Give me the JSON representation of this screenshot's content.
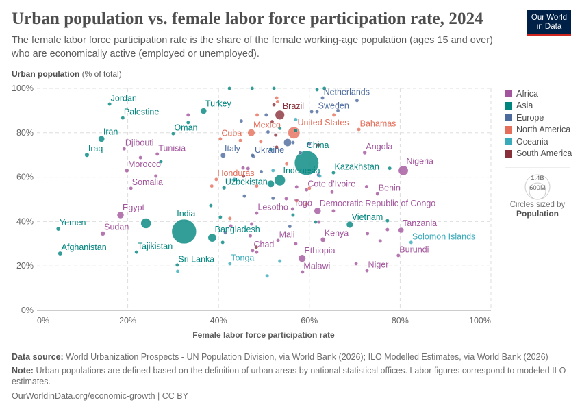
{
  "header": {
    "title": "Urban population vs. female labor force participation rate, 2024",
    "subtitle": "The female labor force participation rate is the share of the female working-age population (ages 15 and over) who are economically active (employed or unemployed).",
    "logo": "Our World in Data"
  },
  "legend": {
    "items": [
      {
        "label": "Africa",
        "color": "#a2559c"
      },
      {
        "label": "Asia",
        "color": "#00847e"
      },
      {
        "label": "Europe",
        "color": "#4c6a9c"
      },
      {
        "label": "North America",
        "color": "#e56e5a"
      },
      {
        "label": "Oceania",
        "color": "#38aaba"
      },
      {
        "label": "South America",
        "color": "#883039"
      }
    ],
    "size_key": {
      "large": "1.4B",
      "small": "600M",
      "caption": "Circles sized by",
      "measure": "Population"
    }
  },
  "footer": {
    "source_label": "Data source:",
    "source": "World Urbanization Prospects - UN Population Division, via World Bank (2026); ILO Modelled Estimates, via World Bank (2026)",
    "note_label": "Note:",
    "note": "Urban populations are defined based on the definition of urban areas by national statistical offices. Labor figures correspond to modeled ILO estimates.",
    "credit": "OurWorldinData.org/economic-growth | CC BY"
  },
  "chart_data": {
    "type": "scatter",
    "title": "Urban population vs. female labor force participation rate, 2024",
    "xlabel": "Female labor force participation rate",
    "ylabel": "Urban population",
    "ylabel_unit": "(% of total)",
    "xlim": [
      0,
      100
    ],
    "ylim": [
      0,
      100
    ],
    "xticks": [
      "0%",
      "20%",
      "40%",
      "60%",
      "80%",
      "100%"
    ],
    "yticks": [
      "0%",
      "20%",
      "40%",
      "60%",
      "80%",
      "100%"
    ],
    "grid": true,
    "legend": "right",
    "size_by": "Population (millions)",
    "points": [
      {
        "label": "Jordan",
        "x": 16,
        "y": 92.9,
        "region": "Asia",
        "pop": 11
      },
      {
        "label": "Palestine",
        "x": 18.9,
        "y": 86.7,
        "region": "Asia",
        "pop": 5
      },
      {
        "label": "Iran",
        "x": 14.2,
        "y": 77.2,
        "region": "Asia",
        "pop": 91
      },
      {
        "label": "Iraq",
        "x": 11,
        "y": 70,
        "region": "Asia",
        "pop": 46
      },
      {
        "label": "Djibouti",
        "x": 19.2,
        "y": 72.8,
        "region": "Africa",
        "pop": 1
      },
      {
        "label": "Tunisia",
        "x": 26.5,
        "y": 70.4,
        "region": "Africa",
        "pop": 12
      },
      {
        "label": "Morocco",
        "x": 19.8,
        "y": 63,
        "region": "Africa",
        "pop": 38
      },
      {
        "label": "Somalia",
        "x": 20.7,
        "y": 55,
        "region": "Africa",
        "pop": 19
      },
      {
        "label": "Oman",
        "x": 30,
        "y": 79.6,
        "region": "Asia",
        "pop": 5
      },
      {
        "label": "Turkey",
        "x": 36.7,
        "y": 89.8,
        "region": "Asia",
        "pop": 87
      },
      {
        "label": "Cuba",
        "x": 40.4,
        "y": 77.2,
        "region": "North America",
        "pop": 11
      },
      {
        "label": "Mexico",
        "x": 47.2,
        "y": 80,
        "region": "North America",
        "pop": 131
      },
      {
        "label": "Italy",
        "x": 41,
        "y": 69.8,
        "region": "Europe",
        "pop": 59
      },
      {
        "label": "Ukraine",
        "x": 47.7,
        "y": 69.4,
        "region": "Europe",
        "pop": 38
      },
      {
        "label": "Honduras",
        "x": 39.5,
        "y": 59,
        "region": "North America",
        "pop": 11
      },
      {
        "label": "Uzbekistan",
        "x": 41.2,
        "y": 55.2,
        "region": "Asia",
        "pop": 36
      },
      {
        "label": "Egypt",
        "x": 18.4,
        "y": 42.9,
        "region": "Africa",
        "pop": 116
      },
      {
        "label": "Yemen",
        "x": 4.7,
        "y": 36.7,
        "region": "Asia",
        "pop": 40
      },
      {
        "label": "Sudan",
        "x": 14.5,
        "y": 34.6,
        "region": "Africa",
        "pop": 50
      },
      {
        "label": "Afghanistan",
        "x": 5.1,
        "y": 25.6,
        "region": "Asia",
        "pop": 42
      },
      {
        "label": "Tajikistan",
        "x": 21.9,
        "y": 26.2,
        "region": "Asia",
        "pop": 10
      },
      {
        "label": "India",
        "x": 32.4,
        "y": 35.5,
        "region": "Asia",
        "pop": 1450
      },
      {
        "label": "Bangladesh",
        "x": 38.6,
        "y": 32.7,
        "region": "Asia",
        "pop": 173
      },
      {
        "label": "Sri Lanka",
        "x": 30.9,
        "y": 20.4,
        "region": "Asia",
        "pop": 23
      },
      {
        "label": "Tonga",
        "x": 42.5,
        "y": 21,
        "region": "Oceania",
        "pop": 1
      },
      {
        "label": "Chad",
        "x": 47.5,
        "y": 26.9,
        "region": "Africa",
        "pop": 20
      },
      {
        "label": "Lesotho",
        "x": 48.4,
        "y": 43.8,
        "region": "Africa",
        "pop": 2
      },
      {
        "label": "Togo",
        "x": 56.3,
        "y": 45.7,
        "region": "Africa",
        "pop": 9
      },
      {
        "label": "Democratic Republic of Congo",
        "x": 61.8,
        "y": 44.8,
        "region": "Africa",
        "pop": 110
      },
      {
        "label": "Mali",
        "x": 53.1,
        "y": 31.5,
        "region": "Africa",
        "pop": 24
      },
      {
        "label": "Kenya",
        "x": 63,
        "y": 31.8,
        "region": "Africa",
        "pop": 56
      },
      {
        "label": "Ethiopia",
        "x": 58.4,
        "y": 23.4,
        "region": "Africa",
        "pop": 132
      },
      {
        "label": "Malawi",
        "x": 58.5,
        "y": 17.3,
        "region": "Africa",
        "pop": 21
      },
      {
        "label": "Vietnam",
        "x": 68.9,
        "y": 38.6,
        "region": "Asia",
        "pop": 101
      },
      {
        "label": "Tanzania",
        "x": 80.2,
        "y": 36.1,
        "region": "Africa",
        "pop": 69
      },
      {
        "label": "Solomon Islands",
        "x": 82.4,
        "y": 30.6,
        "region": "Oceania",
        "pop": 1
      },
      {
        "label": "Burundi",
        "x": 79.6,
        "y": 24.7,
        "region": "Africa",
        "pop": 14
      },
      {
        "label": "Niger",
        "x": 72.7,
        "y": 17.9,
        "region": "Africa",
        "pop": 27
      },
      {
        "label": "Netherlands",
        "x": 62.9,
        "y": 95.7,
        "region": "Europe",
        "pop": 18
      },
      {
        "label": "Sweden",
        "x": 61.7,
        "y": 89.5,
        "region": "Europe",
        "pop": 11
      },
      {
        "label": "Brazil",
        "x": 53.5,
        "y": 88,
        "region": "South America",
        "pop": 212
      },
      {
        "label": "United States",
        "x": 56.6,
        "y": 80,
        "region": "North America",
        "pop": 345
      },
      {
        "label": "Bahamas",
        "x": 70.9,
        "y": 81.5,
        "region": "North America",
        "pop": 1
      },
      {
        "label": "China",
        "x": 59.4,
        "y": 66.4,
        "region": "Asia",
        "pop": 1410
      },
      {
        "label": "Angola",
        "x": 72.2,
        "y": 71,
        "region": "Africa",
        "pop": 37
      },
      {
        "label": "Nigeria",
        "x": 80.7,
        "y": 63,
        "region": "Africa",
        "pop": 233
      },
      {
        "label": "Kazakhstan",
        "x": 65.3,
        "y": 62,
        "region": "Asia",
        "pop": 20
      },
      {
        "label": "Indonesia",
        "x": 53.5,
        "y": 58.6,
        "region": "Asia",
        "pop": 283
      },
      {
        "label": "Cote d'Ivoire",
        "x": 59.4,
        "y": 54.3,
        "region": "Africa",
        "pop": 31
      },
      {
        "label": "Benin",
        "x": 75,
        "y": 52.5,
        "region": "Africa",
        "pop": 14
      },
      {
        "x": 24,
        "y": 39.2,
        "region": "Asia",
        "pop": 251
      },
      {
        "x": 40.9,
        "y": 30.6,
        "region": "Asia",
        "pop": 30
      },
      {
        "x": 31,
        "y": 17.6,
        "region": "Oceania",
        "pop": 10
      },
      {
        "x": 55.2,
        "y": 75.6,
        "region": "Europe",
        "pop": 145
      },
      {
        "x": 50.9,
        "y": 80.4,
        "region": "Europe",
        "pop": 30
      },
      {
        "x": 52.6,
        "y": 79,
        "region": "South America",
        "pop": 30
      },
      {
        "x": 57,
        "y": 81,
        "region": "Asia",
        "pop": 30
      },
      {
        "x": 46.5,
        "y": 63.9,
        "region": "Africa",
        "pop": 30
      },
      {
        "x": 51.5,
        "y": 57,
        "region": "Asia",
        "pop": 124
      },
      {
        "x": 42.4,
        "y": 100,
        "region": "Asia",
        "pop": 4
      },
      {
        "x": 47.4,
        "y": 100,
        "region": "Asia",
        "pop": 4
      },
      {
        "x": 52.2,
        "y": 100,
        "region": "Asia",
        "pop": 4
      },
      {
        "x": 61.7,
        "y": 99.4,
        "region": "Asia",
        "pop": 4
      },
      {
        "x": 63.3,
        "y": 100,
        "region": "Asia",
        "pop": 4
      },
      {
        "x": 52.2,
        "y": 92.6,
        "region": "South America",
        "pop": 10
      },
      {
        "x": 52.8,
        "y": 95.7,
        "region": "North America",
        "pop": 2
      },
      {
        "x": 51.8,
        "y": 85,
        "region": "South America",
        "pop": 5
      },
      {
        "x": 50.5,
        "y": 88,
        "region": "Europe",
        "pop": 5
      },
      {
        "x": 45,
        "y": 85.3,
        "region": "Europe",
        "pop": 5
      },
      {
        "x": 56.4,
        "y": 75.6,
        "region": "Europe",
        "pop": 5
      },
      {
        "x": 47.5,
        "y": 69.8,
        "region": "Europe",
        "pop": 5
      },
      {
        "x": 45.7,
        "y": 51.5,
        "region": "Europe",
        "pop": 3
      },
      {
        "x": 52,
        "y": 50.5,
        "region": "Europe",
        "pop": 3
      },
      {
        "x": 55.7,
        "y": 37.8,
        "region": "Europe",
        "pop": 3
      },
      {
        "x": 60,
        "y": 75,
        "region": "Europe",
        "pop": 5
      },
      {
        "x": 66.3,
        "y": 90,
        "region": "Europe",
        "pop": 5
      },
      {
        "x": 70.5,
        "y": 94.5,
        "region": "Europe",
        "pop": 5
      },
      {
        "x": 58,
        "y": 71,
        "region": "Europe",
        "pop": 3
      },
      {
        "x": 62,
        "y": 61,
        "region": "Europe",
        "pop": 3
      },
      {
        "x": 60.5,
        "y": 89.5,
        "region": "Europe",
        "pop": 5
      },
      {
        "x": 49.4,
        "y": 62.5,
        "region": "Europe",
        "pop": 3
      },
      {
        "x": 41.5,
        "y": 35,
        "region": "Europe",
        "pop": 3
      },
      {
        "x": 53,
        "y": 94,
        "region": "North America",
        "pop": 3
      },
      {
        "x": 49.3,
        "y": 76,
        "region": "North America",
        "pop": 3
      },
      {
        "x": 48.4,
        "y": 56,
        "region": "North America",
        "pop": 3
      },
      {
        "x": 57.2,
        "y": 49.4,
        "region": "North America",
        "pop": 3
      },
      {
        "x": 42.5,
        "y": 41.4,
        "region": "North America",
        "pop": 3
      },
      {
        "x": 60,
        "y": 55,
        "region": "North America",
        "pop": 3
      },
      {
        "x": 59.3,
        "y": 47.8,
        "region": "North America",
        "pop": 3
      },
      {
        "x": 65.4,
        "y": 88,
        "region": "North America",
        "pop": 3
      },
      {
        "x": 48.5,
        "y": 88,
        "region": "North America",
        "pop": 3
      },
      {
        "x": 44.8,
        "y": 76.5,
        "region": "North America",
        "pop": 3
      },
      {
        "x": 38.5,
        "y": 56,
        "region": "North America",
        "pop": 3
      },
      {
        "x": 55,
        "y": 66,
        "region": "North America",
        "pop": 3
      },
      {
        "x": 48.3,
        "y": 28.5,
        "region": "South America",
        "pop": 5
      },
      {
        "x": 62,
        "y": 74.5,
        "region": "South America",
        "pop": 5
      },
      {
        "x": 45.5,
        "y": 60.5,
        "region": "South America",
        "pop": 5
      },
      {
        "x": 52.8,
        "y": 73.5,
        "region": "South America",
        "pop": 30
      },
      {
        "x": 43.5,
        "y": 59,
        "region": "Oceania",
        "pop": 3
      },
      {
        "x": 52,
        "y": 63,
        "region": "Oceania",
        "pop": 3
      },
      {
        "x": 57,
        "y": 86,
        "region": "Oceania",
        "pop": 3
      },
      {
        "x": 62.3,
        "y": 60.5,
        "region": "Oceania",
        "pop": 3
      },
      {
        "x": 53.5,
        "y": 22.2,
        "region": "Oceania",
        "pop": 3
      },
      {
        "x": 50.7,
        "y": 15.5,
        "region": "Oceania",
        "pop": 3
      },
      {
        "x": 27.3,
        "y": 67,
        "region": "Asia",
        "pop": 4
      },
      {
        "x": 33.3,
        "y": 84.6,
        "region": "Asia",
        "pop": 10
      },
      {
        "x": 61.4,
        "y": 39.8,
        "region": "Asia",
        "pop": 4
      },
      {
        "x": 56.4,
        "y": 42.9,
        "region": "Asia",
        "pop": 4
      },
      {
        "x": 38.3,
        "y": 47.2,
        "region": "Asia",
        "pop": 4
      },
      {
        "x": 40.4,
        "y": 42,
        "region": "Asia",
        "pop": 4
      },
      {
        "x": 77.2,
        "y": 40.4,
        "region": "Asia",
        "pop": 4
      },
      {
        "x": 77.7,
        "y": 64,
        "region": "Asia",
        "pop": 4
      },
      {
        "x": 53.5,
        "y": 82,
        "region": "Asia",
        "pop": 4
      },
      {
        "x": 51.5,
        "y": 72.5,
        "region": "Asia",
        "pop": 4
      },
      {
        "x": 33.3,
        "y": 88,
        "region": "Africa",
        "pop": 4
      },
      {
        "x": 22.8,
        "y": 68.8,
        "region": "Africa",
        "pop": 4
      },
      {
        "x": 26.2,
        "y": 60.5,
        "region": "Africa",
        "pop": 4
      },
      {
        "x": 45.4,
        "y": 64.2,
        "region": "Africa",
        "pop": 4
      },
      {
        "x": 65.3,
        "y": 44.8,
        "region": "Africa",
        "pop": 4
      },
      {
        "x": 62.1,
        "y": 39.8,
        "region": "Africa",
        "pop": 4
      },
      {
        "x": 77.2,
        "y": 36.4,
        "region": "Africa",
        "pop": 18
      },
      {
        "x": 72.8,
        "y": 34.6,
        "region": "Africa",
        "pop": 4
      },
      {
        "x": 75.6,
        "y": 31.2,
        "region": "Africa",
        "pop": 30
      },
      {
        "x": 57,
        "y": 30,
        "region": "Africa",
        "pop": 4
      },
      {
        "x": 70.3,
        "y": 21,
        "region": "Africa",
        "pop": 4
      },
      {
        "x": 47.3,
        "y": 38.9,
        "region": "Africa",
        "pop": 4
      },
      {
        "x": 47,
        "y": 33.6,
        "region": "Africa",
        "pop": 4
      },
      {
        "x": 42.7,
        "y": 38,
        "region": "Africa",
        "pop": 4
      },
      {
        "x": 48.4,
        "y": 26.2,
        "region": "Africa",
        "pop": 4
      },
      {
        "x": 54.9,
        "y": 50.3,
        "region": "Africa",
        "pop": 4
      },
      {
        "x": 57.2,
        "y": 55.6,
        "region": "Africa",
        "pop": 10
      },
      {
        "x": 72.6,
        "y": 55.7,
        "region": "Africa",
        "pop": 4
      },
      {
        "x": 65,
        "y": 53.3,
        "region": "Africa",
        "pop": 4
      }
    ]
  }
}
